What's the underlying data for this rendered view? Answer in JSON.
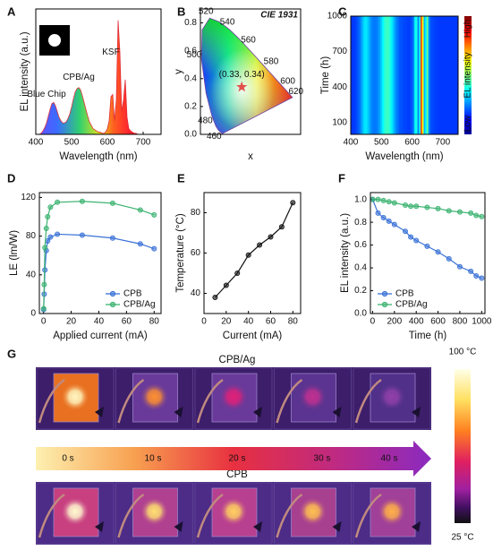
{
  "chart_data": [
    {
      "panel": "A",
      "type": "area",
      "xlabel": "Wavelength (nm)",
      "ylabel": "EL intensity (a.u.)",
      "color": "#e0303a",
      "xlim": [
        400,
        750
      ],
      "xticks": [
        400,
        500,
        600,
        700
      ],
      "ylim": [
        0,
        1.1
      ],
      "x": [
        400,
        405,
        410,
        415,
        420,
        425,
        430,
        435,
        440,
        445,
        450,
        455,
        460,
        465,
        470,
        475,
        480,
        485,
        490,
        495,
        500,
        505,
        510,
        515,
        520,
        525,
        530,
        535,
        540,
        545,
        550,
        555,
        560,
        565,
        570,
        575,
        580,
        585,
        590,
        595,
        600,
        605,
        610,
        615,
        620,
        625,
        630,
        635,
        640,
        645,
        650,
        655,
        660,
        665,
        670,
        675,
        680,
        685,
        690,
        695,
        700,
        705,
        710,
        715,
        720,
        725,
        730,
        735,
        740,
        745,
        750
      ],
      "values": [
        0,
        0,
        0,
        0.01,
        0.03,
        0.06,
        0.1,
        0.16,
        0.22,
        0.27,
        0.28,
        0.25,
        0.2,
        0.15,
        0.12,
        0.1,
        0.1,
        0.11,
        0.14,
        0.18,
        0.24,
        0.31,
        0.37,
        0.4,
        0.41,
        0.39,
        0.34,
        0.28,
        0.22,
        0.16,
        0.11,
        0.08,
        0.05,
        0.04,
        0.03,
        0.02,
        0.02,
        0.01,
        0.01,
        0.02,
        0.05,
        0.12,
        0.33,
        0.35,
        0.12,
        0.3,
        1.0,
        0.72,
        0.2,
        0.3,
        0.48,
        0.15,
        0.05,
        0.03,
        0.02,
        0.01,
        0.01,
        0,
        0,
        0,
        0,
        0,
        0,
        0,
        0,
        0,
        0,
        0,
        0,
        0,
        0
      ],
      "annotations": [
        {
          "text": "Blue Chip",
          "x": 430,
          "y": 0.35
        },
        {
          "text": "CPB/Ag",
          "x": 520,
          "y": 0.5
        },
        {
          "text": "KSF",
          "x": 610,
          "y": 0.72
        }
      ]
    },
    {
      "panel": "B",
      "type": "cie",
      "title": "CIE 1931",
      "xlabel": "x",
      "ylabel": "y",
      "xlim": [
        0,
        0.8
      ],
      "ylim": [
        0,
        0.9
      ],
      "yticks": [
        {
          "value": 0,
          "label": "0.0"
        },
        {
          "value": 0.2,
          "label": "0.2"
        },
        {
          "value": 0.4,
          "label": "0.4"
        },
        {
          "value": 0.6,
          "label": "0.6"
        },
        {
          "value": 0.8,
          "label": "0.8"
        }
      ],
      "locus": {
        "x": [
          0.1741,
          0.144,
          0.1241,
          0.0913,
          0.0454,
          0.0082,
          0.0139,
          0.0743,
          0.1547,
          0.2296,
          0.3016,
          0.3731,
          0.4441,
          0.5125,
          0.5752,
          0.627,
          0.6658,
          0.6915,
          0.7347
        ],
        "y": [
          0.005,
          0.0297,
          0.0578,
          0.1327,
          0.295,
          0.5384,
          0.7502,
          0.8338,
          0.8059,
          0.7543,
          0.6923,
          0.6245,
          0.5547,
          0.4866,
          0.4242,
          0.3725,
          0.334,
          0.3083,
          0.2653
        ],
        "labels": [
          null,
          460,
          null,
          480,
          null,
          500,
          null,
          520,
          null,
          540,
          null,
          560,
          null,
          580,
          null,
          600,
          null,
          620,
          null
        ]
      },
      "point": {
        "x": 0.33,
        "y": 0.34,
        "label": "(0.33, 0.34)",
        "color": "#e0504a"
      }
    },
    {
      "panel": "C",
      "type": "heatmap",
      "xlabel": "Wavelength (nm)",
      "ylabel": "Time (h)",
      "xlim": [
        400,
        750
      ],
      "xticks": [
        400,
        500,
        600,
        700
      ],
      "ylim": [
        0,
        1000
      ],
      "yticks": [
        100,
        400,
        700,
        1000
      ],
      "colorbar": {
        "high": "High",
        "title": "EL intensity",
        "low": "Low"
      },
      "x": [
        400,
        405,
        410,
        415,
        420,
        425,
        430,
        435,
        440,
        445,
        450,
        455,
        460,
        465,
        470,
        475,
        480,
        485,
        490,
        495,
        500,
        505,
        510,
        515,
        520,
        525,
        530,
        535,
        540,
        545,
        550,
        555,
        560,
        565,
        570,
        575,
        580,
        585,
        590,
        595,
        600,
        605,
        610,
        615,
        620,
        625,
        630,
        635,
        640,
        645,
        650,
        655,
        660,
        665,
        670,
        675,
        680,
        685,
        690,
        695,
        700,
        705,
        710,
        715,
        720,
        725,
        730,
        735,
        740,
        745,
        750
      ],
      "values": [
        0,
        0,
        0,
        0.01,
        0.03,
        0.06,
        0.1,
        0.16,
        0.22,
        0.27,
        0.28,
        0.25,
        0.2,
        0.15,
        0.12,
        0.1,
        0.1,
        0.11,
        0.14,
        0.18,
        0.24,
        0.31,
        0.37,
        0.4,
        0.41,
        0.39,
        0.34,
        0.28,
        0.22,
        0.16,
        0.11,
        0.08,
        0.05,
        0.04,
        0.03,
        0.02,
        0.02,
        0.01,
        0.01,
        0.02,
        0.05,
        0.12,
        0.33,
        0.35,
        0.12,
        0.3,
        1.0,
        0.72,
        0.2,
        0.3,
        0.48,
        0.15,
        0.05,
        0.03,
        0.02,
        0.01,
        0.01,
        0,
        0,
        0,
        0,
        0,
        0,
        0,
        0,
        0,
        0,
        0,
        0,
        0,
        0
      ]
    },
    {
      "panel": "D",
      "type": "line",
      "markers": true,
      "legend": "lower right",
      "xlabel": "Applied current (mA)",
      "ylabel": "LE (lm/W)",
      "xlim": [
        -3,
        85
      ],
      "xticks": [
        0,
        20,
        40,
        60,
        80
      ],
      "ylim": [
        0,
        125
      ],
      "yticks": [
        0,
        40,
        80,
        120
      ],
      "x": [
        0.1,
        0.5,
        1,
        2,
        3,
        5,
        10,
        28,
        50,
        70,
        80
      ],
      "series": [
        {
          "name": "CPB",
          "color": "#3a72d6",
          "values": [
            4,
            20,
            45,
            65,
            75,
            79,
            82,
            81,
            78,
            72,
            67
          ]
        },
        {
          "name": "CPB/Ag",
          "color": "#3cb371",
          "values": [
            5,
            30,
            68,
            88,
            100,
            110,
            115,
            116,
            114,
            107,
            102
          ]
        }
      ]
    },
    {
      "panel": "E",
      "type": "line",
      "markers": true,
      "xlabel": "Current (mA)",
      "ylabel": "Temperature (°C)",
      "color": "#111111",
      "xlim": [
        0,
        87
      ],
      "xticks": [
        0,
        20,
        40,
        60,
        80
      ],
      "ylim": [
        30,
        90
      ],
      "yticks": [
        40,
        60,
        80
      ],
      "x": [
        10,
        20,
        30,
        40,
        50,
        60,
        70,
        80
      ],
      "values": [
        38,
        44,
        50,
        59,
        64,
        68,
        73,
        85
      ]
    },
    {
      "panel": "F",
      "type": "line",
      "markers": true,
      "legend": "lower left",
      "xlabel": "Time (h)",
      "ylabel": "EL intensity (a.u.)",
      "xlim": [
        -20,
        1030
      ],
      "xticks": [
        0,
        200,
        400,
        600,
        800,
        1000
      ],
      "ylim": [
        0,
        1.06
      ],
      "yticks": [
        {
          "value": 0,
          "label": "0.0"
        },
        {
          "value": 0.2,
          "label": "0.2"
        },
        {
          "value": 0.4,
          "label": "0.4"
        },
        {
          "value": 0.6,
          "label": "0.6"
        },
        {
          "value": 0.8,
          "label": "0.8"
        },
        {
          "value": 1,
          "label": "1.0"
        }
      ],
      "x": [
        0,
        50,
        100,
        150,
        200,
        300,
        350,
        400,
        500,
        600,
        700,
        800,
        900,
        950,
        1000
      ],
      "series": [
        {
          "name": "CPB",
          "color": "#3a72d6",
          "values": [
            1.0,
            0.88,
            0.84,
            0.81,
            0.78,
            0.72,
            0.67,
            0.64,
            0.59,
            0.54,
            0.48,
            0.41,
            0.37,
            0.33,
            0.31
          ]
        },
        {
          "name": "CPB/Ag",
          "color": "#3cb371",
          "values": [
            1.0,
            1.0,
            0.99,
            0.98,
            0.97,
            0.95,
            0.94,
            0.94,
            0.93,
            0.92,
            0.9,
            0.89,
            0.88,
            0.86,
            0.85
          ]
        }
      ]
    }
  ],
  "panel_g": {
    "label": "G",
    "top_row": "CPB/Ag",
    "bottom_row": "CPB",
    "times": [
      "0 s",
      "10 s",
      "20 s",
      "30 s",
      "40 s"
    ],
    "scale_max": "100 °C",
    "scale_min": "25 °C"
  }
}
